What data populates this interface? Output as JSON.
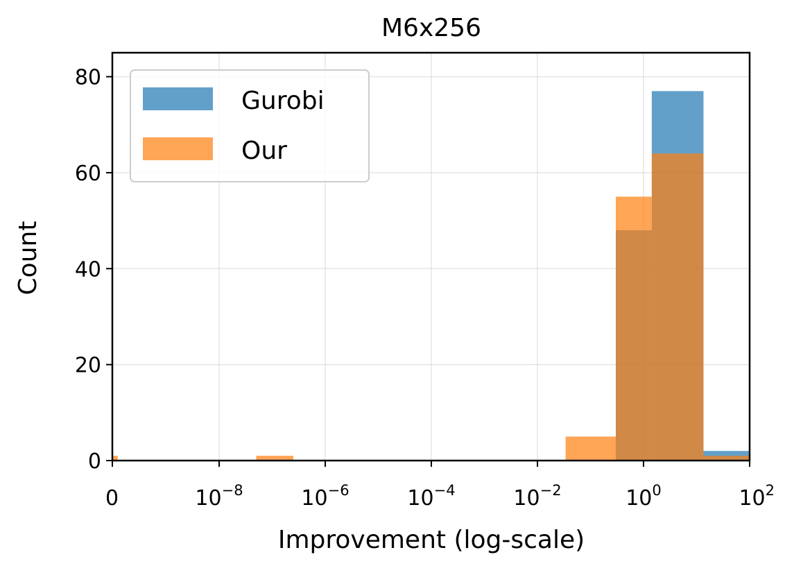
{
  "chart_data": {
    "type": "bar",
    "title": "M6x256",
    "xlabel": "Improvement (log-scale)",
    "ylabel": "Count",
    "x_scale": "log",
    "x_ticks": [
      {
        "value": 0,
        "base": "0",
        "exp": ""
      },
      {
        "value": 1e-08,
        "base": "10",
        "exp": "−8"
      },
      {
        "value": 1e-06,
        "base": "10",
        "exp": "−6"
      },
      {
        "value": 0.0001,
        "base": "10",
        "exp": "−4"
      },
      {
        "value": 0.01,
        "base": "10",
        "exp": "−2"
      },
      {
        "value": 1,
        "base": "10",
        "exp": "0"
      },
      {
        "value": 100,
        "base": "10",
        "exp": "2"
      }
    ],
    "y_ticks": [
      "0",
      "20",
      "40",
      "60",
      "80"
    ],
    "ylim": [
      0,
      85
    ],
    "grid": true,
    "legend_position": "top-left",
    "series": [
      {
        "name": "Gurobi",
        "color": "#1f77b4",
        "bins": [
          {
            "x0": 0.3,
            "x1": 1.43,
            "count": 48
          },
          {
            "x0": 1.43,
            "x1": 13.5,
            "count": 77
          },
          {
            "x0": 13.5,
            "x1": 100,
            "count": 2
          }
        ]
      },
      {
        "name": "Our",
        "color": "#ff7f0e",
        "bins": [
          {
            "x0": 0,
            "x1": 5e-10,
            "count": 1
          },
          {
            "x0": 5e-08,
            "x1": 2.5e-07,
            "count": 1
          },
          {
            "x0": 0.034,
            "x1": 0.3,
            "count": 5
          },
          {
            "x0": 0.3,
            "x1": 1.43,
            "count": 55
          },
          {
            "x0": 1.43,
            "x1": 13.5,
            "count": 64
          },
          {
            "x0": 13.5,
            "x1": 100,
            "count": 1
          }
        ]
      }
    ]
  }
}
